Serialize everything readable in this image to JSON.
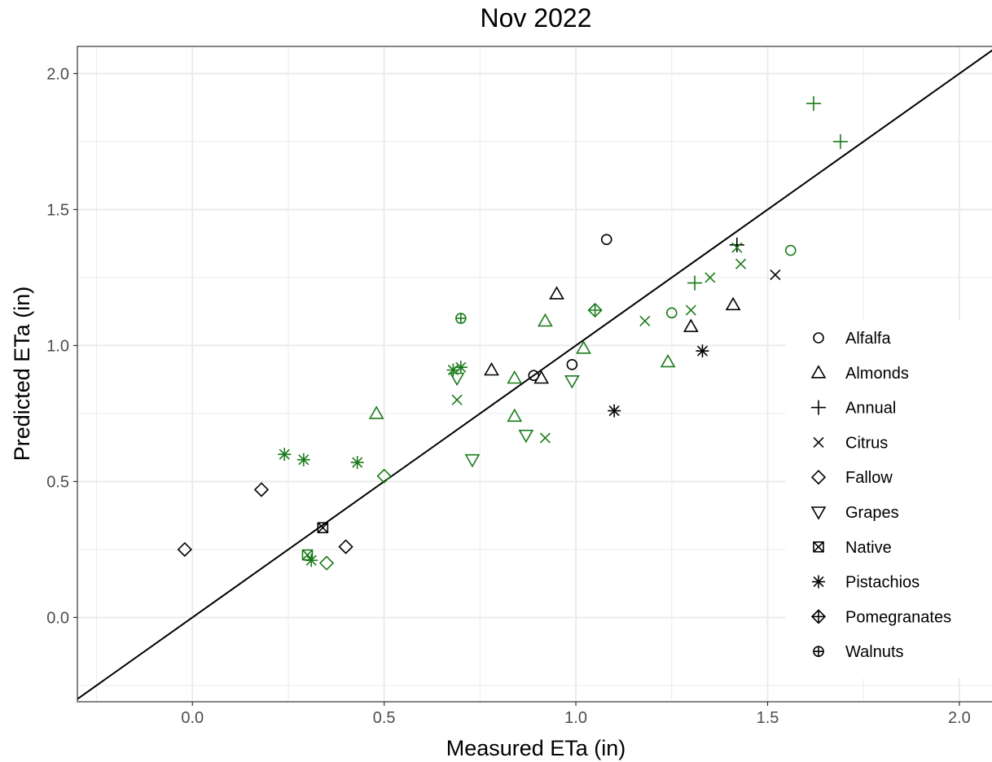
{
  "colors": {
    "black": "#000000",
    "green": "#1a7a1a",
    "grid": "#ebebeb",
    "panel_border": "#333333"
  },
  "chart_data": {
    "type": "scatter",
    "title": "Nov 2022",
    "xlabel": "Measured ETa (in)",
    "ylabel": "Predicted ETa (in)",
    "xlim": [
      -0.3,
      2.1
    ],
    "ylim": [
      -0.31,
      2.1
    ],
    "xticks": [
      "0.0",
      "0.5",
      "1.0",
      "1.5",
      "2.0"
    ],
    "yticks": [
      "0.0",
      "0.5",
      "1.0",
      "1.5",
      "2.0"
    ],
    "grid": true,
    "legend_position": "right",
    "reference_line": "1:1",
    "legend": [
      {
        "name": "Alfalfa",
        "shape": "circle"
      },
      {
        "name": "Almonds",
        "shape": "triangle"
      },
      {
        "name": "Annual",
        "shape": "plus"
      },
      {
        "name": "Citrus",
        "shape": "cross"
      },
      {
        "name": "Fallow",
        "shape": "diamond"
      },
      {
        "name": "Grapes",
        "shape": "triangle-down"
      },
      {
        "name": "Native",
        "shape": "square-cross"
      },
      {
        "name": "Pistachios",
        "shape": "asterisk"
      },
      {
        "name": "Pomegranates",
        "shape": "diamond-plus"
      },
      {
        "name": "Walnuts",
        "shape": "circle-plus"
      }
    ],
    "points": [
      {
        "x": 1.08,
        "y": 1.39,
        "shape": "circle",
        "color": "black"
      },
      {
        "x": 0.99,
        "y": 0.93,
        "shape": "circle",
        "color": "black"
      },
      {
        "x": 0.89,
        "y": 0.89,
        "shape": "circle",
        "color": "black"
      },
      {
        "x": 1.56,
        "y": 1.35,
        "shape": "circle",
        "color": "green"
      },
      {
        "x": 1.25,
        "y": 1.12,
        "shape": "circle",
        "color": "green"
      },
      {
        "x": 0.95,
        "y": 1.19,
        "shape": "triangle",
        "color": "black"
      },
      {
        "x": 1.41,
        "y": 1.15,
        "shape": "triangle",
        "color": "black"
      },
      {
        "x": 1.3,
        "y": 1.07,
        "shape": "triangle",
        "color": "black"
      },
      {
        "x": 0.78,
        "y": 0.91,
        "shape": "triangle",
        "color": "black"
      },
      {
        "x": 0.91,
        "y": 0.88,
        "shape": "triangle",
        "color": "black"
      },
      {
        "x": 0.92,
        "y": 1.09,
        "shape": "triangle",
        "color": "green"
      },
      {
        "x": 1.02,
        "y": 0.99,
        "shape": "triangle",
        "color": "green"
      },
      {
        "x": 1.24,
        "y": 0.94,
        "shape": "triangle",
        "color": "green"
      },
      {
        "x": 0.84,
        "y": 0.88,
        "shape": "triangle",
        "color": "green"
      },
      {
        "x": 0.84,
        "y": 0.74,
        "shape": "triangle",
        "color": "green"
      },
      {
        "x": 0.48,
        "y": 0.75,
        "shape": "triangle",
        "color": "green"
      },
      {
        "x": 1.42,
        "y": 1.37,
        "shape": "plus",
        "color": "black"
      },
      {
        "x": 1.62,
        "y": 1.89,
        "shape": "plus",
        "color": "green"
      },
      {
        "x": 1.69,
        "y": 1.75,
        "shape": "plus",
        "color": "green"
      },
      {
        "x": 1.31,
        "y": 1.23,
        "shape": "plus",
        "color": "green"
      },
      {
        "x": 1.52,
        "y": 1.26,
        "shape": "cross",
        "color": "black"
      },
      {
        "x": 1.43,
        "y": 1.3,
        "shape": "cross",
        "color": "green"
      },
      {
        "x": 1.42,
        "y": 1.36,
        "shape": "cross",
        "color": "green"
      },
      {
        "x": 1.35,
        "y": 1.25,
        "shape": "cross",
        "color": "green"
      },
      {
        "x": 1.3,
        "y": 1.13,
        "shape": "cross",
        "color": "green"
      },
      {
        "x": 1.18,
        "y": 1.09,
        "shape": "cross",
        "color": "green"
      },
      {
        "x": 0.69,
        "y": 0.8,
        "shape": "cross",
        "color": "green"
      },
      {
        "x": 0.92,
        "y": 0.66,
        "shape": "cross",
        "color": "green"
      },
      {
        "x": 0.18,
        "y": 0.47,
        "shape": "diamond",
        "color": "black"
      },
      {
        "x": -0.02,
        "y": 0.25,
        "shape": "diamond",
        "color": "black"
      },
      {
        "x": 0.4,
        "y": 0.26,
        "shape": "diamond",
        "color": "black"
      },
      {
        "x": 0.5,
        "y": 0.52,
        "shape": "diamond",
        "color": "green"
      },
      {
        "x": 0.35,
        "y": 0.2,
        "shape": "diamond",
        "color": "green"
      },
      {
        "x": 0.99,
        "y": 0.87,
        "shape": "triangle-down",
        "color": "green"
      },
      {
        "x": 0.87,
        "y": 0.67,
        "shape": "triangle-down",
        "color": "green"
      },
      {
        "x": 0.73,
        "y": 0.58,
        "shape": "triangle-down",
        "color": "green"
      },
      {
        "x": 0.69,
        "y": 0.88,
        "shape": "triangle-down",
        "color": "green"
      },
      {
        "x": 0.34,
        "y": 0.33,
        "shape": "square-cross",
        "color": "black"
      },
      {
        "x": 0.3,
        "y": 0.23,
        "shape": "square-cross",
        "color": "green"
      },
      {
        "x": 1.1,
        "y": 0.76,
        "shape": "asterisk",
        "color": "black"
      },
      {
        "x": 1.33,
        "y": 0.98,
        "shape": "asterisk",
        "color": "black"
      },
      {
        "x": 0.68,
        "y": 0.91,
        "shape": "asterisk",
        "color": "green"
      },
      {
        "x": 0.7,
        "y": 0.92,
        "shape": "asterisk",
        "color": "green"
      },
      {
        "x": 0.24,
        "y": 0.6,
        "shape": "asterisk",
        "color": "green"
      },
      {
        "x": 0.29,
        "y": 0.58,
        "shape": "asterisk",
        "color": "green"
      },
      {
        "x": 0.43,
        "y": 0.57,
        "shape": "asterisk",
        "color": "green"
      },
      {
        "x": 0.31,
        "y": 0.21,
        "shape": "asterisk",
        "color": "green"
      },
      {
        "x": 1.05,
        "y": 1.13,
        "shape": "diamond-plus",
        "color": "green"
      },
      {
        "x": 0.7,
        "y": 1.1,
        "shape": "circle-plus",
        "color": "green"
      }
    ]
  }
}
